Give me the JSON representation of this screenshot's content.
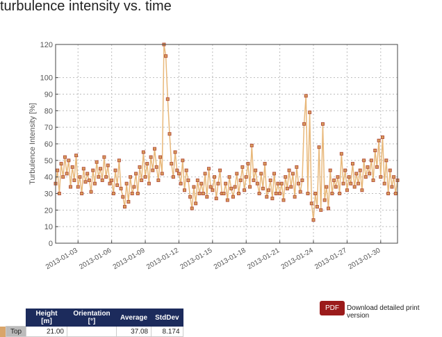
{
  "page": {
    "title": "turbulence intensity vs. time"
  },
  "chart_data": {
    "type": "line",
    "title": "",
    "xlabel": "",
    "ylabel": "Turbulence Intensity [%]",
    "ylim": [
      0,
      120
    ],
    "yticks": [
      0,
      10,
      20,
      30,
      40,
      50,
      60,
      70,
      80,
      90,
      100,
      120
    ],
    "xlim": [
      "2013-01-01 00:00",
      "2013-01-31 12:00"
    ],
    "xticks": [
      "2013-01-03",
      "2013-01-06",
      "2013-01-09",
      "2013-01-12",
      "2013-01-15",
      "2013-01-18",
      "2013-01-21",
      "2013-01-24",
      "2013-01-27",
      "2013-01-30"
    ],
    "grid": true,
    "marker": "square",
    "colors": {
      "marker_fill": "#d9a05b",
      "marker_edge": "#b5523e",
      "line": "#e8b87a"
    },
    "series": [
      {
        "x_start": "2013-01-01 00:00",
        "interval_hours": 4,
        "values": [
          36,
          44,
          30,
          48,
          40,
          52,
          42,
          50,
          34,
          46,
          38,
          53,
          34,
          40,
          30,
          45,
          37,
          42,
          38,
          31,
          44,
          36,
          49,
          40,
          45,
          38,
          52,
          40,
          47,
          36,
          38,
          30,
          44,
          35,
          50,
          33,
          28,
          22,
          36,
          25,
          40,
          30,
          34,
          42,
          30,
          46,
          38,
          55,
          40,
          48,
          36,
          52,
          44,
          57,
          46,
          38,
          52,
          42,
          120,
          113,
          87,
          66,
          48,
          40,
          55,
          44,
          42,
          36,
          50,
          32,
          44,
          38,
          28,
          21,
          34,
          24,
          38,
          30,
          36,
          30,
          42,
          28,
          45,
          34,
          32,
          40,
          27,
          36,
          44,
          30,
          30,
          36,
          26,
          40,
          33,
          28,
          34,
          42,
          30,
          38,
          46,
          32,
          40,
          48,
          34,
          59,
          38,
          44,
          36,
          30,
          42,
          33,
          48,
          28,
          32,
          38,
          27,
          42,
          30,
          36,
          30,
          36,
          26,
          40,
          33,
          44,
          34,
          42,
          28,
          46,
          36,
          31,
          38,
          72,
          89,
          30,
          79,
          24,
          14,
          30,
          22,
          58,
          20,
          72,
          26,
          34,
          21,
          44,
          30,
          38,
          34,
          40,
          30,
          54,
          36,
          44,
          32,
          40,
          36,
          48,
          34,
          42,
          36,
          44,
          32,
          50,
          40,
          46,
          42,
          50,
          38,
          56,
          46,
          62,
          40,
          64,
          36,
          50,
          30,
          44,
          34,
          40,
          30,
          38
        ]
      }
    ]
  },
  "table": {
    "headers": [
      "Height [m]",
      "Orientation [°]",
      "Average",
      "StdDev"
    ],
    "rows": [
      {
        "label": "Top",
        "height": "21.00",
        "orientation": "",
        "average": "37.08",
        "stddev": "8.174",
        "color": "#d9a56a"
      }
    ]
  },
  "pdf": {
    "button": "PDF",
    "link": "Download detailed print version"
  }
}
